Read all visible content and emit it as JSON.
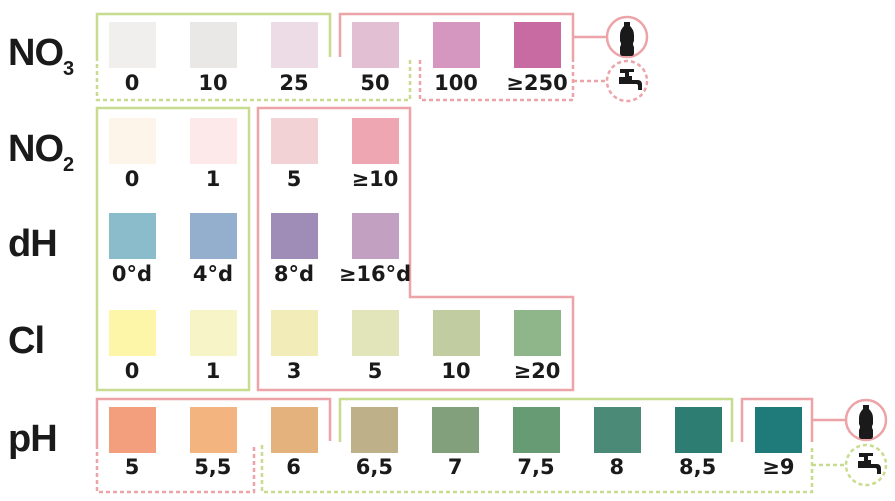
{
  "rows": [
    {
      "id": "no3",
      "name": "NO",
      "sub": "3",
      "swatches": [
        {
          "label": "0",
          "color": "#f1efed"
        },
        {
          "label": "10",
          "color": "#eae8e6"
        },
        {
          "label": "25",
          "color": "#eddce6"
        },
        {
          "label": "50",
          "color": "#e2bfd2"
        },
        {
          "label": "100",
          "color": "#d596bf"
        },
        {
          "label": "≥250",
          "color": "#c86ba2"
        }
      ]
    },
    {
      "id": "no2",
      "name": "NO",
      "sub": "2",
      "swatches": [
        {
          "label": "0",
          "color": "#fdf5ea"
        },
        {
          "label": "1",
          "color": "#fde8ea"
        },
        {
          "label": "5",
          "color": "#f2d2d4"
        },
        {
          "label": "≥10",
          "color": "#eea6b3"
        }
      ]
    },
    {
      "id": "dh",
      "name": "dH",
      "sub": "",
      "swatches": [
        {
          "label": "0°d",
          "color": "#8abccb"
        },
        {
          "label": "4°d",
          "color": "#93afcd"
        },
        {
          "label": "8°d",
          "color": "#9f8db7"
        },
        {
          "label": "≥16°d",
          "color": "#c2a0c2"
        }
      ]
    },
    {
      "id": "cl",
      "name": "Cl",
      "sub": "",
      "swatches": [
        {
          "label": "0",
          "color": "#fdf5a8"
        },
        {
          "label": "1",
          "color": "#f7f5c8"
        },
        {
          "label": "3",
          "color": "#f2edb8"
        },
        {
          "label": "5",
          "color": "#e2e5b9"
        },
        {
          "label": "10",
          "color": "#c1cca0"
        },
        {
          "label": "≥20",
          "color": "#8fb58a"
        }
      ]
    },
    {
      "id": "ph",
      "name": "pH",
      "sub": "",
      "swatches": [
        {
          "label": "5",
          "color": "#f39f7d"
        },
        {
          "label": "5,5",
          "color": "#f4b47f"
        },
        {
          "label": "6",
          "color": "#e4b27c"
        },
        {
          "label": "6,5",
          "color": "#beb088"
        },
        {
          "label": "7",
          "color": "#82a07c"
        },
        {
          "label": "7,5",
          "color": "#679b74"
        },
        {
          "label": "8",
          "color": "#4a8a76"
        },
        {
          "label": "8,5",
          "color": "#2e7d72"
        },
        {
          "label": "≥9",
          "color": "#1f7b7a"
        }
      ]
    }
  ],
  "colors": {
    "safe": "#c8dc90",
    "unsafe": "#eca4a8"
  },
  "icons": {
    "bottled": "bottle-icon",
    "tap": "tap-icon"
  }
}
